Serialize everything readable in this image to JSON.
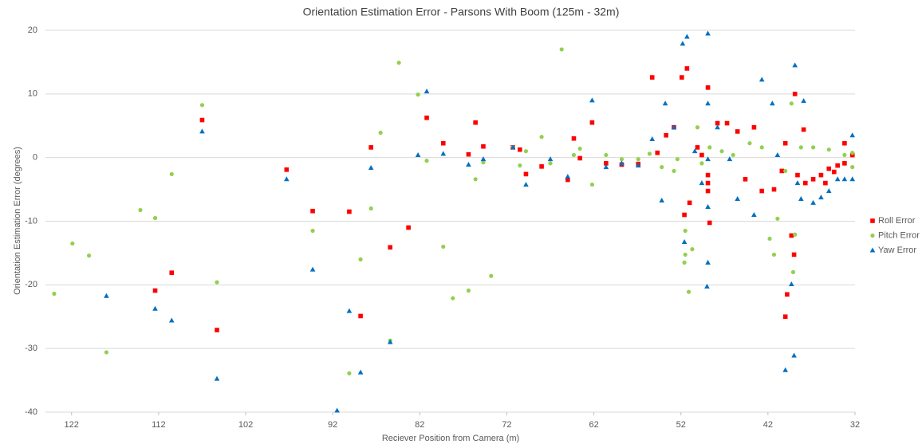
{
  "chart_data": {
    "type": "scatter",
    "title": "Orientation Estimation Error - Parsons With Boom (125m - 32m)",
    "x_label": "Reciever Position from Camera (m)",
    "y_label": "Orientation Estimation Error (degrees)",
    "xlim": [
      125,
      32
    ],
    "xticks": [
      122,
      112,
      102,
      92,
      82,
      72,
      62,
      52,
      42,
      32
    ],
    "ylim": [
      -40,
      20
    ],
    "yticks": [
      -40,
      -30,
      -20,
      -10,
      0,
      10,
      20
    ],
    "grid": true,
    "legend": "right",
    "series": [
      {
        "name": "Roll Error",
        "color": "#ff0000",
        "marker": "square",
        "x": [
          107.0,
          105.3,
          112.4,
          110.5,
          97.3,
          94.3,
          90.1,
          88.8,
          87.6,
          85.4,
          83.3,
          81.2,
          79.3,
          76.4,
          75.6,
          74.7,
          71.3,
          70.5,
          69.8,
          68.0,
          65.0,
          64.3,
          62.2,
          63.6,
          60.6,
          58.8,
          56.9,
          55.3,
          54.7,
          53.7,
          52.8,
          51.9,
          51.3,
          51.6,
          51.0,
          50.1,
          49.6,
          48.9,
          48.9,
          48.9,
          48.9,
          48.7,
          47.8,
          46.7,
          45.5,
          43.6,
          42.7,
          44.6,
          41.3,
          40.0,
          40.0,
          39.8,
          39.3,
          39.0,
          38.9,
          37.9,
          38.6,
          37.7,
          36.8,
          35.9,
          35.0,
          34.0,
          33.2,
          32.3,
          33.2,
          34.4,
          35.4,
          40.4
        ],
        "y": [
          5.9,
          -27.1,
          -20.9,
          -18.1,
          -1.9,
          -8.4,
          -8.5,
          -24.9,
          1.6,
          -14.1,
          -11.0,
          6.25,
          2.25,
          0.5,
          5.5,
          1.75,
          1.6,
          1.25,
          -2.6,
          -1.4,
          -3.5,
          3.0,
          5.5,
          -0.1,
          -0.9,
          -1.1,
          -1.0,
          12.6,
          0.75,
          3.5,
          4.75,
          12.6,
          14.0,
          -9.0,
          -7.1,
          1.6,
          0.4,
          11.0,
          -5.25,
          -4.0,
          -2.75,
          -10.25,
          5.4,
          5.4,
          4.1,
          4.75,
          -5.25,
          -3.4,
          -5.0,
          2.25,
          -25.0,
          -21.5,
          -12.25,
          -15.25,
          10.0,
          4.4,
          -2.75,
          -4.0,
          -3.4,
          -2.75,
          -1.75,
          -1.25,
          -0.9,
          0.4,
          2.25,
          -2.25,
          -4.0,
          -2.1
        ]
      },
      {
        "name": "Pitch Error",
        "color": "#92d050",
        "marker": "circle",
        "x": [
          124.0,
          121.9,
          120.0,
          118.0,
          114.1,
          112.4,
          110.5,
          107.0,
          105.3,
          94.3,
          90.1,
          88.8,
          87.6,
          86.5,
          85.4,
          84.4,
          82.2,
          81.2,
          79.3,
          78.2,
          76.4,
          75.6,
          74.7,
          73.8,
          71.3,
          70.5,
          69.8,
          68.0,
          67.0,
          65.7,
          64.3,
          63.6,
          62.2,
          60.6,
          58.8,
          56.9,
          55.6,
          54.2,
          52.8,
          52.4,
          51.5,
          51.5,
          51.6,
          51.1,
          50.7,
          50.1,
          49.6,
          48.7,
          47.3,
          46.0,
          44.1,
          42.7,
          41.8,
          41.3,
          40.9,
          40.0,
          39.3,
          39.1,
          38.9,
          38.2,
          36.8,
          35.0,
          33.2,
          32.3,
          32.3
        ],
        "y": [
          -21.4,
          -13.5,
          -15.4,
          -30.6,
          -8.25,
          -9.5,
          -2.6,
          8.25,
          -19.6,
          -11.5,
          -33.9,
          -16.0,
          -8.0,
          3.9,
          -28.75,
          14.9,
          9.9,
          -0.5,
          -14.0,
          -22.1,
          -20.9,
          -3.4,
          -0.75,
          -18.6,
          1.6,
          -1.25,
          1.0,
          3.25,
          -0.9,
          17.0,
          0.4,
          1.4,
          -4.25,
          0.4,
          -0.25,
          -0.25,
          0.6,
          -1.5,
          -2.1,
          -0.25,
          -11.5,
          -15.25,
          -16.5,
          -21.1,
          -14.4,
          4.75,
          -0.9,
          1.6,
          1.0,
          0.4,
          2.25,
          1.6,
          -12.75,
          -15.25,
          -9.6,
          -2.1,
          8.5,
          -18.0,
          -12.1,
          1.6,
          1.6,
          1.25,
          0.4,
          0.75,
          -1.5
        ]
      },
      {
        "name": "Yaw Error",
        "color": "#0070c0",
        "marker": "triangle",
        "x": [
          118.0,
          112.4,
          110.5,
          107.0,
          105.3,
          97.3,
          94.3,
          91.5,
          90.1,
          88.8,
          87.6,
          85.4,
          82.2,
          81.2,
          79.3,
          76.4,
          74.7,
          71.3,
          69.8,
          67.0,
          65.0,
          62.2,
          60.6,
          58.8,
          56.9,
          55.3,
          54.2,
          53.8,
          52.8,
          51.8,
          51.3,
          51.6,
          50.4,
          49.6,
          49.0,
          48.9,
          48.9,
          48.9,
          48.9,
          48.9,
          47.8,
          46.4,
          45.5,
          43.6,
          42.7,
          41.5,
          40.9,
          40.0,
          39.3,
          39.0,
          38.9,
          37.9,
          38.2,
          36.8,
          35.0,
          34.0,
          33.2,
          32.3,
          32.3,
          35.9,
          38.6
        ],
        "y": [
          -21.75,
          -23.75,
          -25.6,
          4.1,
          -34.75,
          -3.4,
          -17.6,
          -39.75,
          -24.1,
          -33.75,
          -1.6,
          -29.0,
          0.4,
          10.4,
          0.6,
          -1.1,
          -0.25,
          1.6,
          -4.25,
          -0.25,
          -3.0,
          9.0,
          -1.5,
          -0.9,
          -1.25,
          2.9,
          -6.75,
          8.5,
          4.75,
          17.9,
          19.0,
          -13.25,
          1.0,
          -4.0,
          -20.25,
          19.5,
          8.5,
          -0.25,
          -7.75,
          -16.5,
          4.75,
          -0.25,
          -6.5,
          -9.0,
          12.25,
          8.5,
          0.4,
          -33.4,
          -19.9,
          -31.1,
          14.5,
          8.9,
          -6.5,
          -7.1,
          -5.25,
          -3.4,
          -3.4,
          3.5,
          -3.4,
          -6.25,
          -4.0
        ]
      }
    ]
  }
}
